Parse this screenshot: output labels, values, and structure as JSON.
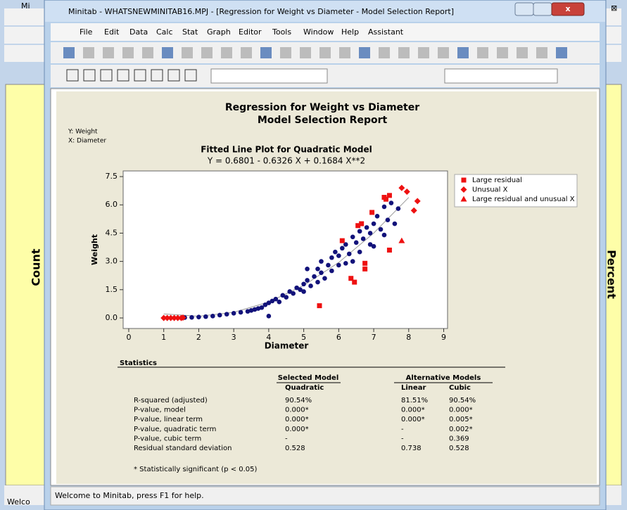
{
  "window": {
    "title": "Minitab - WHATSNEWMINITAB16.MPJ - [Regression for Weight vs Diameter - Model Selection Report]",
    "back_title": "Mi"
  },
  "menu": [
    "File",
    "Edit",
    "Data",
    "Calc",
    "Stat",
    "Graph",
    "Editor",
    "Tools",
    "Window",
    "Help",
    "Assistant"
  ],
  "back_window": {
    "left_axis": "Count",
    "right_axis": "Percent",
    "status": "Welco"
  },
  "report": {
    "title": "Regression for Weight vs Diameter",
    "subtitle": "Model Selection Report",
    "y_note": "Y: Weight",
    "x_note": "X: Diameter"
  },
  "chart_data": {
    "type": "scatter",
    "title": "Fitted Line Plot for Quadratic Model",
    "subtitle": "Y =  0.6801 - 0.6326 X + 0.1684 X**2",
    "x_label": "Diameter",
    "y_label": "Weight",
    "xlim": [
      -0.16,
      9.11
    ],
    "ylim": [
      -0.56,
      7.8
    ],
    "xticks": [
      0,
      1,
      2,
      3,
      4,
      5,
      6,
      7,
      8,
      9
    ],
    "yticks": [
      {
        "value": 0,
        "label": "0.0"
      },
      {
        "value": 1.5,
        "label": "1.5"
      },
      {
        "value": 3,
        "label": "3.0"
      },
      {
        "value": 4.5,
        "label": "4.5"
      },
      {
        "value": 6,
        "label": "6.0"
      },
      {
        "value": 7.5,
        "label": "7.5"
      }
    ],
    "points": {
      "color": "#12127a",
      "x": [
        1.6,
        1.8,
        2.0,
        2.2,
        2.4,
        2.6,
        2.8,
        3.0,
        3.2,
        3.4,
        3.5,
        3.6,
        3.7,
        3.8,
        3.9,
        4.0,
        4.0,
        4.1,
        4.2,
        4.3,
        4.4,
        4.5,
        4.6,
        4.7,
        4.8,
        4.9,
        5.0,
        5.0,
        5.1,
        5.1,
        5.2,
        5.3,
        5.4,
        5.4,
        5.5,
        5.5,
        5.6,
        5.7,
        5.8,
        5.8,
        5.9,
        6.0,
        6.0,
        6.1,
        6.2,
        6.2,
        6.3,
        6.4,
        6.4,
        6.5,
        6.6,
        6.6,
        6.7,
        6.8,
        6.9,
        7.0,
        7.0,
        7.1,
        7.2,
        7.3,
        7.4,
        7.5,
        7.6,
        7.7,
        7.3,
        6.9
      ],
      "values": [
        0.02,
        0.03,
        0.05,
        0.07,
        0.1,
        0.15,
        0.2,
        0.25,
        0.3,
        0.35,
        0.4,
        0.45,
        0.5,
        0.55,
        0.7,
        0.8,
        0.1,
        0.9,
        1.0,
        0.85,
        1.2,
        1.1,
        1.4,
        1.3,
        1.6,
        1.5,
        1.8,
        1.4,
        2.0,
        2.6,
        1.7,
        2.2,
        2.6,
        1.9,
        2.4,
        3.0,
        2.1,
        2.8,
        3.2,
        2.5,
        3.5,
        2.8,
        3.3,
        3.7,
        2.9,
        3.9,
        3.4,
        4.3,
        3.0,
        4.0,
        4.6,
        3.5,
        4.2,
        4.8,
        4.5,
        5.0,
        3.8,
        5.4,
        4.7,
        5.9,
        5.2,
        6.1,
        5.0,
        5.8,
        4.4,
        3.9
      ]
    },
    "fit_line": {
      "color": "#999999",
      "x": [
        1,
        2,
        3,
        4,
        5,
        6,
        7,
        8
      ],
      "values": [
        0.216,
        0.089,
        0.298,
        0.844,
        1.726,
        2.945,
        4.501,
        6.393
      ]
    },
    "series": [
      {
        "name": "Large residual",
        "color": "#ee1111",
        "marker": "square",
        "x": [
          5.45,
          6.35,
          6.45,
          6.75,
          6.75,
          6.55,
          6.65,
          6.95,
          7.3,
          7.45,
          7.45,
          7.35,
          6.1
        ],
        "values": [
          0.65,
          2.1,
          1.9,
          2.9,
          2.6,
          4.9,
          5.0,
          5.6,
          6.4,
          6.5,
          3.6,
          6.3,
          4.1
        ]
      },
      {
        "name": "Unusual X",
        "color": "#ee1111",
        "marker": "diamond",
        "x": [
          7.8,
          7.95,
          8.25,
          8.15,
          1.0,
          1.1,
          1.2,
          1.3,
          1.4,
          1.5,
          1.55
        ],
        "values": [
          6.9,
          6.7,
          6.2,
          5.7,
          0,
          0,
          0,
          0,
          0,
          0,
          0.02
        ]
      },
      {
        "name": "Large residual and unusual X",
        "color": "#ee1111",
        "marker": "triangle",
        "x": [
          7.8
        ],
        "values": [
          4.1
        ]
      }
    ],
    "legend": "right"
  },
  "statistics": {
    "title": "Statistics",
    "group_headers": [
      "Selected Model",
      "Alternative Models"
    ],
    "columns": [
      "Quadratic",
      "Linear",
      "Cubic"
    ],
    "rows": [
      [
        "R-squared (adjusted)",
        "90.54%",
        "81.51%",
        "90.54%"
      ],
      [
        "P-value, model",
        "0.000*",
        "0.000*",
        "0.000*"
      ],
      [
        "P-value, linear term",
        "0.000*",
        "0.000*",
        "0.005*"
      ],
      [
        "P-value, quadratic term",
        "0.000*",
        "-",
        "0.002*"
      ],
      [
        "P-value, cubic term",
        "-",
        "-",
        "0.369"
      ],
      [
        "Residual standard deviation",
        "0.528",
        "0.738",
        "0.528"
      ]
    ],
    "footnote": "* Statistically significant (p < 0.05)"
  },
  "status_bar": "Welcome to Minitab, press F1 for help."
}
